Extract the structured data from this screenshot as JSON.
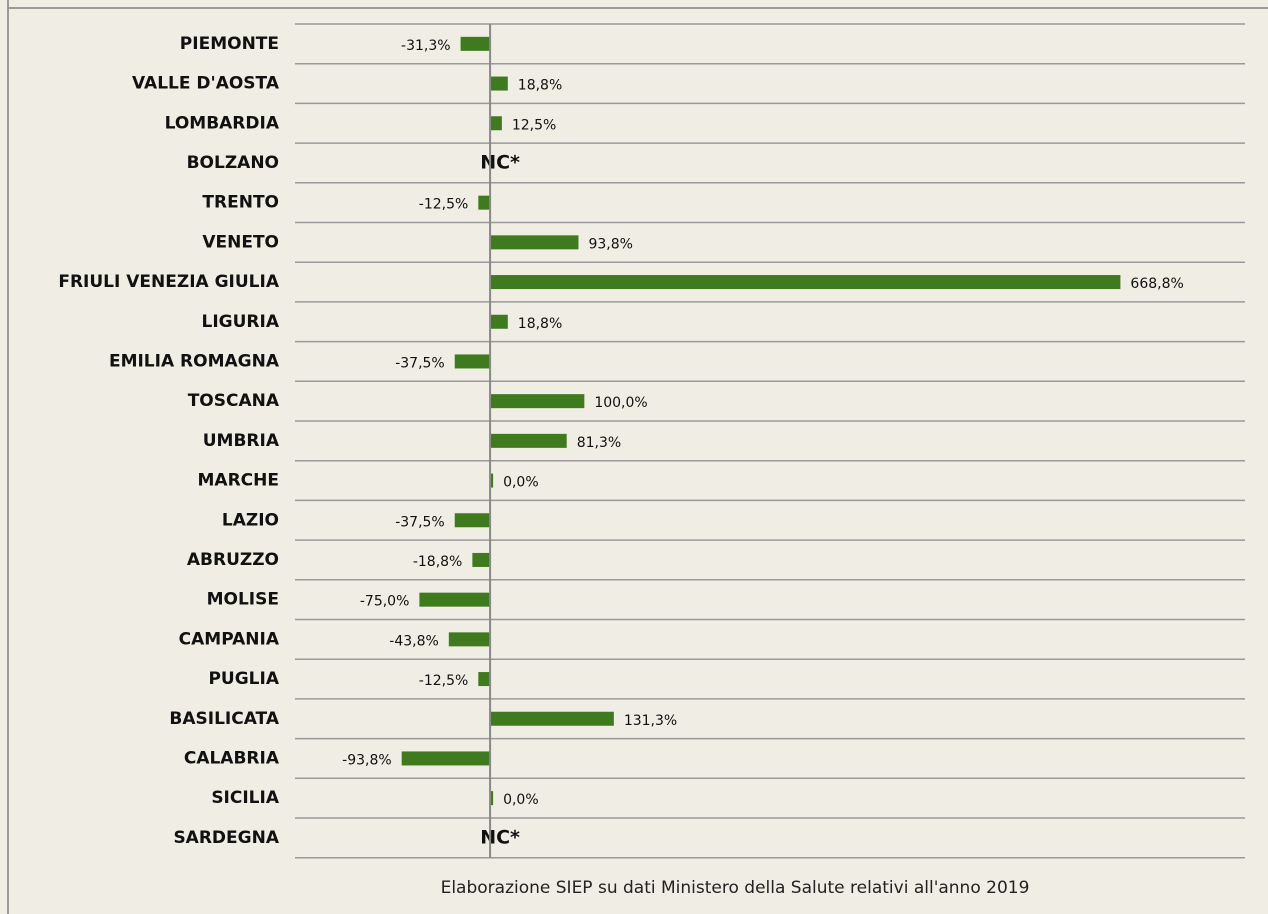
{
  "chart_data": {
    "type": "hbar",
    "categories": [
      "PIEMONTE",
      "VALLE D'AOSTA",
      "LOMBARDIA",
      "BOLZANO",
      "TRENTO",
      "VENETO",
      "FRIULI VENEZIA GIULIA",
      "LIGURIA",
      "EMILIA ROMAGNA",
      "TOSCANA",
      "UMBRIA",
      "MARCHE",
      "LAZIO",
      "ABRUZZO",
      "MOLISE",
      "CAMPANIA",
      "PUGLIA",
      "BASILICATA",
      "CALABRIA",
      "SICILIA",
      "SARDEGNA"
    ],
    "values": [
      -31.3,
      18.8,
      12.5,
      null,
      -12.5,
      93.8,
      668.8,
      18.8,
      -37.5,
      100.0,
      81.3,
      0.0,
      -37.5,
      -18.8,
      -75.0,
      -43.8,
      -12.5,
      131.3,
      -93.8,
      0.0,
      null
    ],
    "value_labels": [
      "-31,3%",
      "18,8%",
      "12,5%",
      "NC*",
      "-12,5%",
      "93,8%",
      "668,8%",
      "18,8%",
      "-37,5%",
      "100,0%",
      "81,3%",
      "0,0%",
      "-37,5%",
      "-18,8%",
      "-75,0%",
      "-43,8%",
      "-12,5%",
      "131,3%",
      "-93,8%",
      "0,0%",
      "NC*"
    ],
    "color": "#3f7a1e",
    "xlim": [
      -207,
      801
    ],
    "note": "Elaborazione SIEP su dati Ministero della Salute relativi all'anno 2019"
  }
}
